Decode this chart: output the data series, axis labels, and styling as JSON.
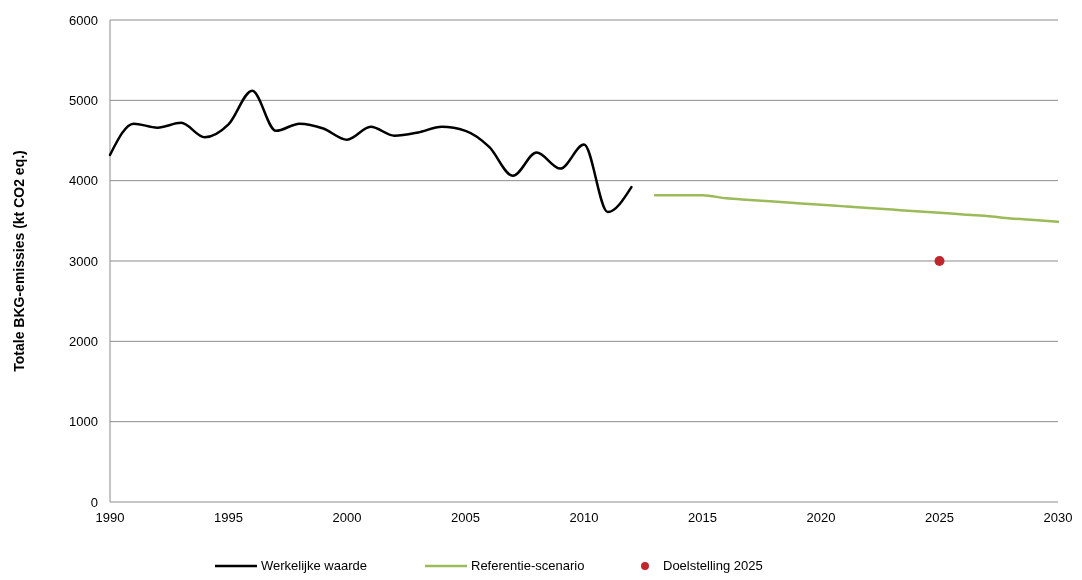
{
  "chart_data": {
    "type": "line",
    "ylabel": "Totale BKG-emissies (kt CO2 eq.)",
    "xlim": [
      1990,
      2030
    ],
    "xticks": [
      1990,
      1995,
      2000,
      2005,
      2010,
      2015,
      2020,
      2025,
      2030
    ],
    "ylim": [
      0,
      6000
    ],
    "yticks": [
      0,
      1000,
      2000,
      3000,
      4000,
      5000,
      6000
    ],
    "grid": "y",
    "legend": "bottom",
    "series": [
      {
        "name": "Werkelijke waarde",
        "color": "#000000",
        "x": [
          1990,
          1991,
          1992,
          1993,
          1994,
          1995,
          1996,
          1997,
          1998,
          1999,
          2000,
          2001,
          2002,
          2003,
          2004,
          2005,
          2006,
          2007,
          2008,
          2009,
          2010,
          2011,
          2012
        ],
        "values": [
          4320,
          4710,
          4660,
          4720,
          4540,
          4700,
          5120,
          4620,
          4710,
          4650,
          4510,
          4670,
          4560,
          4600,
          4670,
          4620,
          4420,
          4060,
          4350,
          4150,
          4450,
          3610,
          3920
        ]
      },
      {
        "name": "Referentie-scenario",
        "color": "#9bbb59",
        "x": [
          2013,
          2014,
          2015,
          2016,
          2017,
          2018,
          2019,
          2020,
          2021,
          2022,
          2023,
          2024,
          2025,
          2026,
          2027,
          2028,
          2029,
          2030
        ],
        "values": [
          3820,
          3820,
          3820,
          3780,
          3760,
          3740,
          3720,
          3700,
          3680,
          3660,
          3640,
          3620,
          3600,
          3580,
          3560,
          3530,
          3510,
          3490
        ]
      },
      {
        "name": "Doelstelling 2025",
        "type": "scatter",
        "marker": "circle",
        "color": "#c0272d",
        "x": [
          2025
        ],
        "values": [
          3000
        ]
      }
    ]
  }
}
